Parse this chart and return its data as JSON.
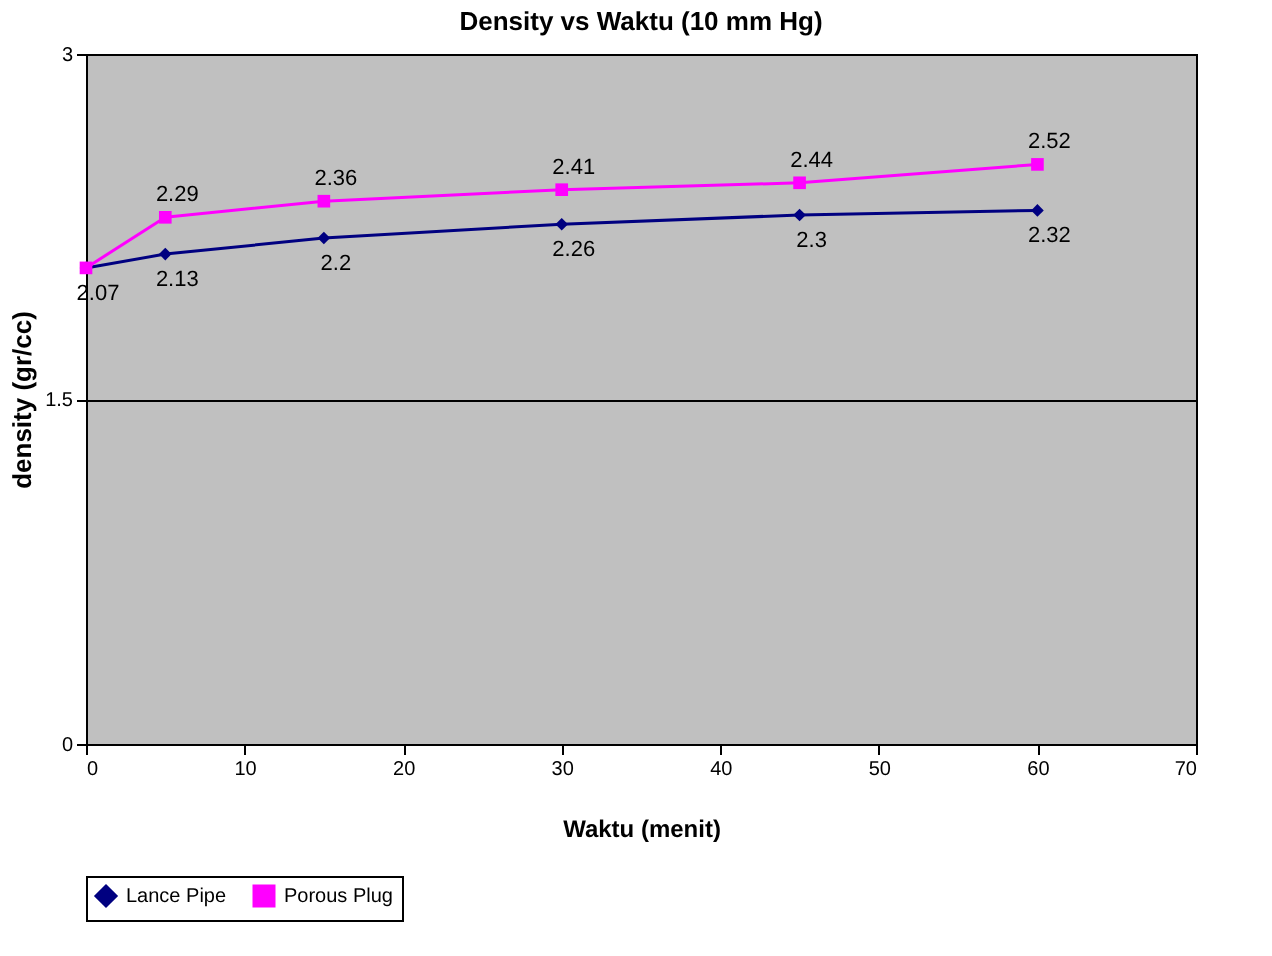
{
  "chart_data": {
    "type": "line",
    "title": "Density vs Waktu (10 mm Hg)",
    "xlabel": "Waktu (menit)",
    "ylabel": "density (gr/cc)",
    "x": [
      0,
      5,
      15,
      30,
      45,
      60
    ],
    "series": [
      {
        "name": "Lance Pipe",
        "color": "#000080",
        "marker": "diamond",
        "values": [
          2.07,
          2.13,
          2.2,
          2.26,
          2.3,
          2.32
        ],
        "value_labels": [
          "2.07",
          "2.13",
          "2.2",
          "2.26",
          "2.3",
          "2.32"
        ]
      },
      {
        "name": "Porous Plug",
        "color": "#ff00ff",
        "marker": "square",
        "values": [
          2.07,
          2.29,
          2.36,
          2.41,
          2.44,
          2.52
        ],
        "value_labels": [
          null,
          "2.29",
          "2.36",
          "2.41",
          "2.44",
          "2.52"
        ]
      }
    ],
    "xlim": [
      0,
      70
    ],
    "xticks": [
      0,
      10,
      20,
      30,
      40,
      50,
      60,
      70
    ],
    "ylim": [
      0,
      3
    ],
    "yticks": [
      0,
      1.5,
      3
    ],
    "grid": "y",
    "legend": "bottom",
    "line_style": "solid"
  }
}
